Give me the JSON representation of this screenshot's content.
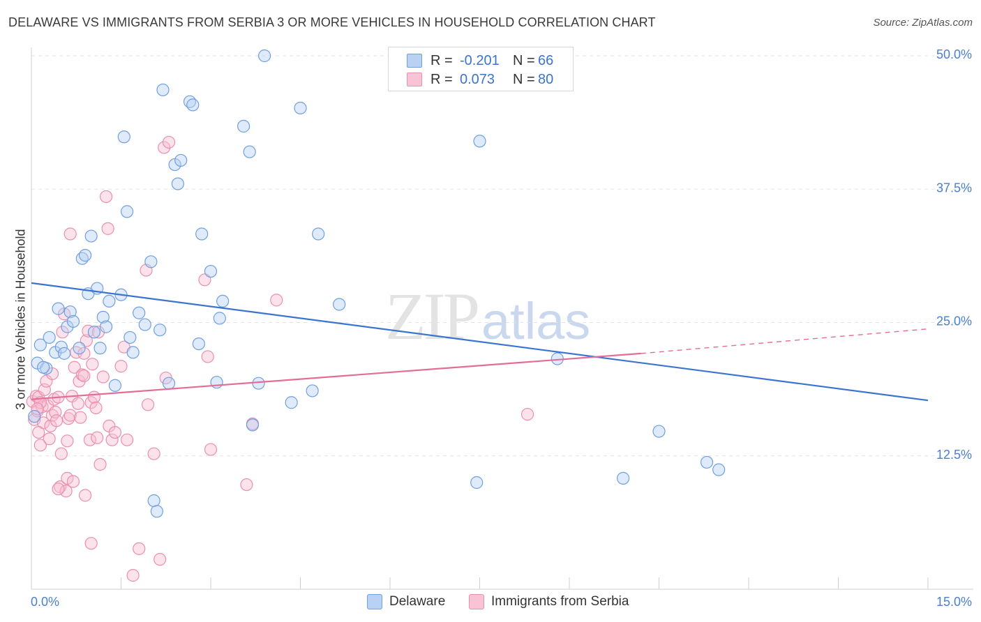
{
  "title": "DELAWARE VS IMMIGRANTS FROM SERBIA 3 OR MORE VEHICLES IN HOUSEHOLD CORRELATION CHART",
  "source": "Source: ZipAtlas.com",
  "watermark": {
    "zip": "ZIP",
    "atlas": "atlas"
  },
  "legend": {
    "r_label": "R =",
    "n_label": "N =",
    "rows": [
      {
        "name": "Delaware",
        "r": "-0.201",
        "n": "66",
        "fill": "#b9d1f3",
        "stroke": "#6f9fe0"
      },
      {
        "name": "Immigrants from Serbia",
        "r": "0.073",
        "n": "80",
        "fill": "#f8c3d4",
        "stroke": "#ea8fae"
      }
    ]
  },
  "colors": {
    "blue_line": "#3a74d0",
    "pink_line": "#e46d97",
    "grid": "#e3e3e3",
    "tick_text": "#4a7fd0"
  },
  "chart_data": {
    "type": "scatter",
    "title": "DELAWARE VS IMMIGRANTS FROM SERBIA 3 OR MORE VEHICLES IN HOUSEHOLD CORRELATION CHART",
    "xlabel": "",
    "ylabel": "3 or more Vehicles in Household",
    "xlim": [
      0,
      15
    ],
    "ylim": [
      0,
      50
    ],
    "x_tick_labels": [
      "0.0%",
      "15.0%"
    ],
    "y_ticks": [
      12.5,
      25.0,
      37.5,
      50.0
    ],
    "y_tick_labels": [
      "12.5%",
      "25.0%",
      "37.5%",
      "50.0%"
    ],
    "grid": true,
    "legend_position": "top-center",
    "series": [
      {
        "name": "Delaware",
        "color": "#6f9fe0",
        "trend": {
          "x": [
            0,
            15
          ],
          "y": [
            28.7,
            17.7
          ]
        },
        "points": [
          [
            0.1,
            21.2
          ],
          [
            0.15,
            22.9
          ],
          [
            0.25,
            20.7
          ],
          [
            0.3,
            23.6
          ],
          [
            0.4,
            22.2
          ],
          [
            0.45,
            26.3
          ],
          [
            0.5,
            22.7
          ],
          [
            0.55,
            22.1
          ],
          [
            0.6,
            24.6
          ],
          [
            0.65,
            26.0
          ],
          [
            0.7,
            25.1
          ],
          [
            0.8,
            22.6
          ],
          [
            0.85,
            31.0
          ],
          [
            0.9,
            31.3
          ],
          [
            0.95,
            27.7
          ],
          [
            1.0,
            33.1
          ],
          [
            1.1,
            28.2
          ],
          [
            1.15,
            22.6
          ],
          [
            1.2,
            25.5
          ],
          [
            1.25,
            24.6
          ],
          [
            1.3,
            27.0
          ],
          [
            1.4,
            19.1
          ],
          [
            1.5,
            27.6
          ],
          [
            1.55,
            42.4
          ],
          [
            1.6,
            35.4
          ],
          [
            1.65,
            23.6
          ],
          [
            1.7,
            22.2
          ],
          [
            1.8,
            25.9
          ],
          [
            1.9,
            24.8
          ],
          [
            2.0,
            30.7
          ],
          [
            2.05,
            8.3
          ],
          [
            2.15,
            24.3
          ],
          [
            2.2,
            46.8
          ],
          [
            2.3,
            19.3
          ],
          [
            2.4,
            39.8
          ],
          [
            2.45,
            38.0
          ],
          [
            2.5,
            40.2
          ],
          [
            2.65,
            45.7
          ],
          [
            2.7,
            45.4
          ],
          [
            2.8,
            23.0
          ],
          [
            2.85,
            33.3
          ],
          [
            3.0,
            29.8
          ],
          [
            3.1,
            19.4
          ],
          [
            3.15,
            25.4
          ],
          [
            3.2,
            27.0
          ],
          [
            3.55,
            43.4
          ],
          [
            3.65,
            41.0
          ],
          [
            3.7,
            15.4
          ],
          [
            3.8,
            19.3
          ],
          [
            3.9,
            50.0
          ],
          [
            4.35,
            17.5
          ],
          [
            4.5,
            45.1
          ],
          [
            4.7,
            18.6
          ],
          [
            4.8,
            33.3
          ],
          [
            5.15,
            26.7
          ],
          [
            7.5,
            42.0
          ],
          [
            7.45,
            10.0
          ],
          [
            8.8,
            21.6
          ],
          [
            9.9,
            10.4
          ],
          [
            10.5,
            14.8
          ],
          [
            11.3,
            11.9
          ],
          [
            11.5,
            11.2
          ],
          [
            1.05,
            24.1
          ],
          [
            2.1,
            7.3
          ],
          [
            0.2,
            20.8
          ],
          [
            0.05,
            16.2
          ]
        ]
      },
      {
        "name": "Immigrants from Serbia",
        "color": "#ea8fae",
        "trend": {
          "x": [
            0,
            10.2
          ],
          "y": [
            17.8,
            22.1
          ]
        },
        "trend_extension": {
          "x": [
            10.2,
            15
          ],
          "y": [
            22.1,
            24.4
          ]
        },
        "points": [
          [
            0.02,
            17.6
          ],
          [
            0.05,
            15.9
          ],
          [
            0.08,
            18.1
          ],
          [
            0.1,
            16.7
          ],
          [
            0.12,
            18.0
          ],
          [
            0.15,
            13.5
          ],
          [
            0.18,
            17.1
          ],
          [
            0.2,
            15.6
          ],
          [
            0.22,
            18.7
          ],
          [
            0.25,
            19.5
          ],
          [
            0.27,
            17.2
          ],
          [
            0.3,
            14.1
          ],
          [
            0.32,
            15.3
          ],
          [
            0.35,
            16.3
          ],
          [
            0.38,
            17.8
          ],
          [
            0.4,
            16.6
          ],
          [
            0.42,
            15.8
          ],
          [
            0.45,
            18.0
          ],
          [
            0.48,
            9.6
          ],
          [
            0.5,
            12.7
          ],
          [
            0.52,
            24.1
          ],
          [
            0.55,
            25.8
          ],
          [
            0.58,
            9.2
          ],
          [
            0.6,
            10.4
          ],
          [
            0.62,
            16.0
          ],
          [
            0.65,
            16.3
          ],
          [
            0.68,
            18.1
          ],
          [
            0.7,
            10.1
          ],
          [
            0.72,
            20.8
          ],
          [
            0.75,
            22.2
          ],
          [
            0.78,
            17.4
          ],
          [
            0.8,
            19.5
          ],
          [
            0.82,
            16.1
          ],
          [
            0.85,
            20.1
          ],
          [
            0.88,
            22.1
          ],
          [
            0.9,
            8.8
          ],
          [
            0.92,
            23.3
          ],
          [
            0.95,
            24.2
          ],
          [
            0.98,
            14.0
          ],
          [
            1.0,
            17.5
          ],
          [
            1.02,
            21.1
          ],
          [
            1.05,
            18.0
          ],
          [
            1.08,
            17.0
          ],
          [
            1.1,
            14.2
          ],
          [
            1.12,
            24.1
          ],
          [
            1.15,
            11.7
          ],
          [
            1.2,
            19.9
          ],
          [
            1.25,
            36.8
          ],
          [
            1.28,
            33.8
          ],
          [
            1.3,
            15.3
          ],
          [
            1.35,
            14.0
          ],
          [
            1.4,
            14.7
          ],
          [
            1.5,
            20.9
          ],
          [
            1.55,
            22.7
          ],
          [
            1.6,
            14.0
          ],
          [
            1.7,
            1.3
          ],
          [
            1.8,
            3.8
          ],
          [
            1.92,
            29.9
          ],
          [
            1.95,
            17.3
          ],
          [
            2.05,
            12.7
          ],
          [
            2.15,
            2.8
          ],
          [
            2.22,
            41.4
          ],
          [
            2.3,
            41.9
          ],
          [
            2.25,
            19.8
          ],
          [
            2.9,
            29.0
          ],
          [
            2.95,
            21.8
          ],
          [
            3.0,
            13.1
          ],
          [
            3.6,
            9.8
          ],
          [
            3.7,
            15.5
          ],
          [
            4.1,
            27.1
          ],
          [
            8.3,
            16.4
          ],
          [
            0.65,
            33.3
          ],
          [
            0.6,
            13.9
          ],
          [
            1.0,
            4.3
          ],
          [
            0.88,
            20.0
          ],
          [
            0.35,
            20.2
          ],
          [
            0.15,
            17.5
          ],
          [
            0.12,
            14.7
          ],
          [
            0.1,
            16.9
          ],
          [
            0.45,
            9.4
          ]
        ]
      }
    ]
  }
}
